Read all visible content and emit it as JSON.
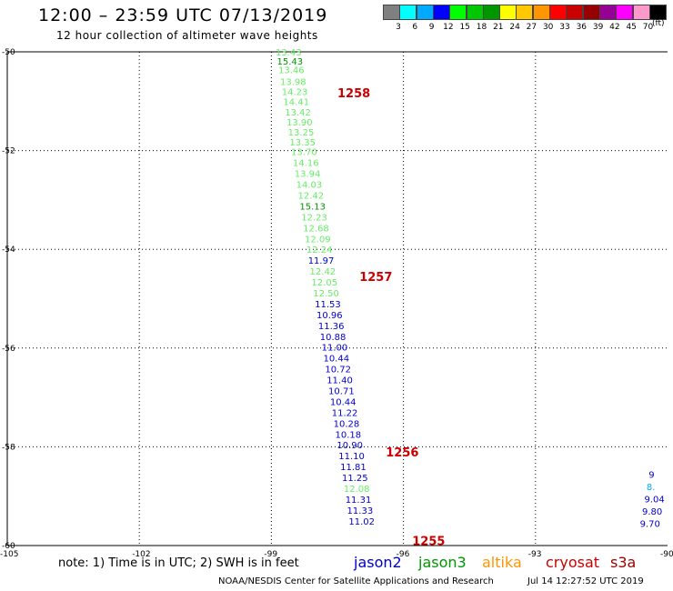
{
  "header": {
    "title": "12:00 – 23:59 UTC 07/13/2019",
    "subtitle": "12 hour collection of altimeter wave heights"
  },
  "legend": {
    "unit": "(ft)",
    "colors": [
      "#808080",
      "#00ffff",
      "#00aaff",
      "#0000ff",
      "#00ff00",
      "#00c800",
      "#009600",
      "#ffff00",
      "#ffc800",
      "#ff9600",
      "#ff0000",
      "#c80000",
      "#960000",
      "#960096",
      "#ff00ff",
      "#ff99cc",
      "#000000"
    ],
    "labels": [
      "3",
      "6",
      "9",
      "12",
      "15",
      "18",
      "21",
      "24",
      "27",
      "30",
      "33",
      "36",
      "39",
      "42",
      "45",
      "70"
    ]
  },
  "axes": {
    "x_ticks": [
      "-105",
      "-102",
      "-99",
      "-96",
      "-93",
      "-90"
    ],
    "y_ticks": [
      "-50",
      "-52",
      "-54",
      "-56",
      "-58",
      "-60"
    ]
  },
  "tracks": {
    "main": [
      {
        "lat": -50.0,
        "v": "13.43",
        "c": "#66ee66"
      },
      {
        "lat": -50.18,
        "v": "15.43",
        "c": "#009600"
      },
      {
        "lat": -50.36,
        "v": "13.46",
        "c": "#66ee66"
      },
      {
        "lat": -50.6,
        "v": "13.98",
        "c": "#66ee66"
      },
      {
        "lat": -50.8,
        "v": "14.23",
        "c": "#66ee66"
      },
      {
        "lat": -51.0,
        "v": "14.41",
        "c": "#66ee66"
      },
      {
        "lat": -51.22,
        "v": "13.42",
        "c": "#66ee66"
      },
      {
        "lat": -51.42,
        "v": "13.90",
        "c": "#66ee66"
      },
      {
        "lat": -51.62,
        "v": "13.25",
        "c": "#66ee66"
      },
      {
        "lat": -51.82,
        "v": "13.35",
        "c": "#66ee66"
      },
      {
        "lat": -52.02,
        "v": "13.70",
        "c": "#66ee66"
      },
      {
        "lat": -52.24,
        "v": "14.16",
        "c": "#66ee66"
      },
      {
        "lat": -52.46,
        "v": "13.94",
        "c": "#66ee66"
      },
      {
        "lat": -52.68,
        "v": "14.03",
        "c": "#66ee66"
      },
      {
        "lat": -52.9,
        "v": "12.42",
        "c": "#66ee66"
      },
      {
        "lat": -53.12,
        "v": "15.13",
        "c": "#009600"
      },
      {
        "lat": -53.34,
        "v": "12.23",
        "c": "#66ee66"
      },
      {
        "lat": -53.56,
        "v": "12.68",
        "c": "#66ee66"
      },
      {
        "lat": -53.78,
        "v": "12.09",
        "c": "#66ee66"
      },
      {
        "lat": -54.0,
        "v": "12.24",
        "c": "#66ee66"
      },
      {
        "lat": -54.22,
        "v": "11.97",
        "c": "#0000cc"
      },
      {
        "lat": -54.44,
        "v": "12.42",
        "c": "#66ee66"
      },
      {
        "lat": -54.66,
        "v": "12.05",
        "c": "#66ee66"
      },
      {
        "lat": -54.88,
        "v": "12.50",
        "c": "#66ee66"
      },
      {
        "lat": -55.1,
        "v": "11.53",
        "c": "#0000cc"
      },
      {
        "lat": -55.32,
        "v": "10.96",
        "c": "#0000cc"
      },
      {
        "lat": -55.54,
        "v": "11.36",
        "c": "#0000cc"
      },
      {
        "lat": -55.76,
        "v": "10.88",
        "c": "#0000cc"
      },
      {
        "lat": -55.98,
        "v": "11.00",
        "c": "#0000cc"
      },
      {
        "lat": -56.2,
        "v": "10.44",
        "c": "#0000cc"
      },
      {
        "lat": -56.42,
        "v": "10.72",
        "c": "#0000cc"
      },
      {
        "lat": -56.64,
        "v": "11.40",
        "c": "#0000cc"
      },
      {
        "lat": -56.86,
        "v": "10.71",
        "c": "#0000cc"
      },
      {
        "lat": -57.08,
        "v": "10.44",
        "c": "#0000cc"
      },
      {
        "lat": -57.3,
        "v": "11.22",
        "c": "#0000cc"
      },
      {
        "lat": -57.52,
        "v": "10.28",
        "c": "#0000cc"
      },
      {
        "lat": -57.74,
        "v": "10.18",
        "c": "#0000cc"
      },
      {
        "lat": -57.96,
        "v": "10.90",
        "c": "#0000cc"
      },
      {
        "lat": -58.18,
        "v": "11.10",
        "c": "#0000cc"
      },
      {
        "lat": -58.4,
        "v": "11.81",
        "c": "#0000cc"
      },
      {
        "lat": -58.62,
        "v": "11.25",
        "c": "#0000cc"
      },
      {
        "lat": -58.84,
        "v": "12.08",
        "c": "#66ee66"
      },
      {
        "lat": -59.06,
        "v": "11.31",
        "c": "#0000cc"
      },
      {
        "lat": -59.28,
        "v": "11.33",
        "c": "#0000cc"
      },
      {
        "lat": -59.5,
        "v": "11.02",
        "c": "#0000cc"
      }
    ],
    "east": [
      {
        "lat": -58.55,
        "v": "9",
        "c": "#0000cc"
      },
      {
        "lat": -58.8,
        "v": "8.",
        "c": "#00aaff"
      },
      {
        "lat": -59.05,
        "v": "9.04",
        "c": "#0000cc"
      },
      {
        "lat": -59.3,
        "v": "9.80",
        "c": "#0000cc"
      },
      {
        "lat": -59.55,
        "v": "9.70",
        "c": "#0000cc"
      }
    ]
  },
  "time_labels": [
    {
      "lat": -50.83,
      "lon": -97.5,
      "text": "1258"
    },
    {
      "lat": -54.55,
      "lon": -97.0,
      "text": "1257"
    },
    {
      "lat": -58.1,
      "lon": -96.4,
      "text": "1256"
    },
    {
      "lat": -59.9,
      "lon": -95.8,
      "text": "1255"
    }
  ],
  "footer": {
    "note": "note:  1) Time is in UTC;  2) SWH is in feet",
    "satellites": [
      {
        "name": "jason2",
        "color": "#0000cc"
      },
      {
        "name": "jason3",
        "color": "#009600"
      },
      {
        "name": "altika",
        "color": "#ff9600"
      },
      {
        "name": "cryosat",
        "color": "#cc0000"
      },
      {
        "name": "s3a",
        "color": "#990000"
      }
    ],
    "credit": "NOAA/NESDIS Center for Satellite Applications and Research",
    "timestamp": "Jul 14 12:27:52 UTC 2019"
  },
  "colors": {
    "time_label": "#cc0000"
  }
}
